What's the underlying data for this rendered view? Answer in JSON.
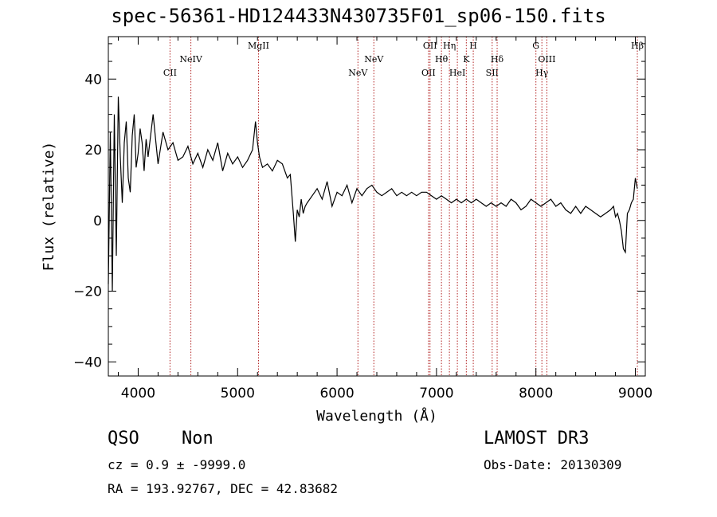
{
  "header": {
    "title": "spec-56361-HD124433N430735F01_sp06-150.fits"
  },
  "info": {
    "class": "QSO",
    "subclass": "Non",
    "cz": "cz = 0.9 ± -9999.0",
    "radec": "RA = 193.92767, DEC =  42.83682",
    "survey": "LAMOST DR3",
    "obsdate": "Obs-Date: 20130309"
  },
  "colors": {
    "line": "#000000",
    "marker": "#b22222",
    "background": "#ffffff"
  },
  "chart_data": {
    "type": "line",
    "title": "spec-56361-HD124433N430735F01_sp06-150.fits",
    "xlabel": "Wavelength (Å)",
    "ylabel": "Flux (relative)",
    "xlim": [
      3700,
      9100
    ],
    "ylim": [
      -44,
      52
    ],
    "xticks": [
      4000,
      5000,
      6000,
      7000,
      8000,
      9000
    ],
    "xtick_labels": [
      "4000",
      "5000",
      "6000",
      "7000",
      "8000",
      "9000"
    ],
    "yticks": [
      -40,
      -20,
      0,
      20,
      40
    ],
    "ytick_labels": [
      "−40",
      "−20",
      "0",
      "20",
      "40"
    ],
    "series": [
      {
        "name": "flux",
        "x": [
          3700,
          3720,
          3740,
          3760,
          3780,
          3800,
          3820,
          3840,
          3860,
          3880,
          3900,
          3920,
          3940,
          3960,
          3980,
          4000,
          4020,
          4040,
          4060,
          4080,
          4100,
          4150,
          4200,
          4250,
          4300,
          4350,
          4400,
          4450,
          4500,
          4550,
          4600,
          4650,
          4700,
          4750,
          4800,
          4850,
          4900,
          4950,
          5000,
          5050,
          5100,
          5150,
          5180,
          5200,
          5220,
          5250,
          5300,
          5350,
          5400,
          5450,
          5500,
          5530,
          5560,
          5580,
          5600,
          5620,
          5640,
          5660,
          5680,
          5700,
          5750,
          5800,
          5850,
          5900,
          5950,
          6000,
          6050,
          6100,
          6150,
          6200,
          6250,
          6300,
          6350,
          6400,
          6450,
          6500,
          6550,
          6600,
          6650,
          6700,
          6750,
          6800,
          6850,
          6900,
          6950,
          7000,
          7050,
          7100,
          7150,
          7200,
          7250,
          7300,
          7350,
          7400,
          7450,
          7500,
          7550,
          7600,
          7650,
          7700,
          7750,
          7800,
          7850,
          7900,
          7950,
          8000,
          8050,
          8100,
          8150,
          8200,
          8250,
          8300,
          8350,
          8400,
          8450,
          8500,
          8550,
          8600,
          8650,
          8700,
          8750,
          8780,
          8800,
          8820,
          8840,
          8860,
          8880,
          8900,
          8920,
          8940,
          8960,
          8980,
          9000,
          9020
        ],
        "y": [
          -18,
          25,
          -20,
          30,
          -10,
          35,
          18,
          5,
          22,
          28,
          12,
          8,
          24,
          30,
          15,
          19,
          26,
          22,
          14,
          23,
          18,
          30,
          16,
          25,
          20,
          22,
          17,
          18,
          21,
          16,
          19,
          15,
          20,
          17,
          22,
          14,
          19,
          16,
          18,
          15,
          17,
          20,
          28,
          22,
          18,
          15,
          16,
          14,
          17,
          16,
          12,
          13,
          2,
          -6,
          3,
          1,
          6,
          2,
          4,
          5,
          7,
          9,
          6,
          11,
          4,
          8,
          7,
          10,
          5,
          9,
          7,
          9,
          10,
          8,
          7,
          8,
          9,
          7,
          8,
          7,
          8,
          7,
          8,
          8,
          7,
          6,
          7,
          6,
          5,
          6,
          5,
          6,
          5,
          6,
          5,
          4,
          5,
          4,
          5,
          4,
          6,
          5,
          3,
          4,
          6,
          5,
          4,
          5,
          6,
          4,
          5,
          3,
          2,
          4,
          2,
          4,
          3,
          2,
          1,
          2,
          3,
          4,
          1,
          2,
          0,
          -3,
          -8,
          -9,
          2,
          3,
          5,
          6,
          12,
          9
        ]
      }
    ],
    "line_markers": [
      {
        "label": "CII",
        "wavelength": 4320,
        "row": 3
      },
      {
        "label": "NeIV",
        "wavelength": 4530,
        "row": 2
      },
      {
        "label": "MgII",
        "wavelength": 5210,
        "row": 1
      },
      {
        "label": "NeV",
        "wavelength": 6210,
        "row": 3
      },
      {
        "label": "NeV",
        "wavelength": 6370,
        "row": 2
      },
      {
        "label": "OII",
        "wavelength": 6920,
        "row": 3
      },
      {
        "label": "OII",
        "wavelength": 6935,
        "row": 1
      },
      {
        "label": "Hθ",
        "wavelength": 7050,
        "row": 2
      },
      {
        "label": "Hη",
        "wavelength": 7130,
        "row": 1
      },
      {
        "label": "HeI",
        "wavelength": 7210,
        "row": 3
      },
      {
        "label": "K",
        "wavelength": 7300,
        "row": 2
      },
      {
        "label": "H",
        "wavelength": 7370,
        "row": 1
      },
      {
        "label": "SII",
        "wavelength": 7560,
        "row": 3
      },
      {
        "label": "Hδ",
        "wavelength": 7610,
        "row": 2
      },
      {
        "label": "G",
        "wavelength": 8000,
        "row": 1
      },
      {
        "label": "Hγ",
        "wavelength": 8060,
        "row": 3
      },
      {
        "label": "OIII",
        "wavelength": 8110,
        "row": 2
      },
      {
        "label": "Hβ",
        "wavelength": 9020,
        "row": 1
      }
    ]
  }
}
